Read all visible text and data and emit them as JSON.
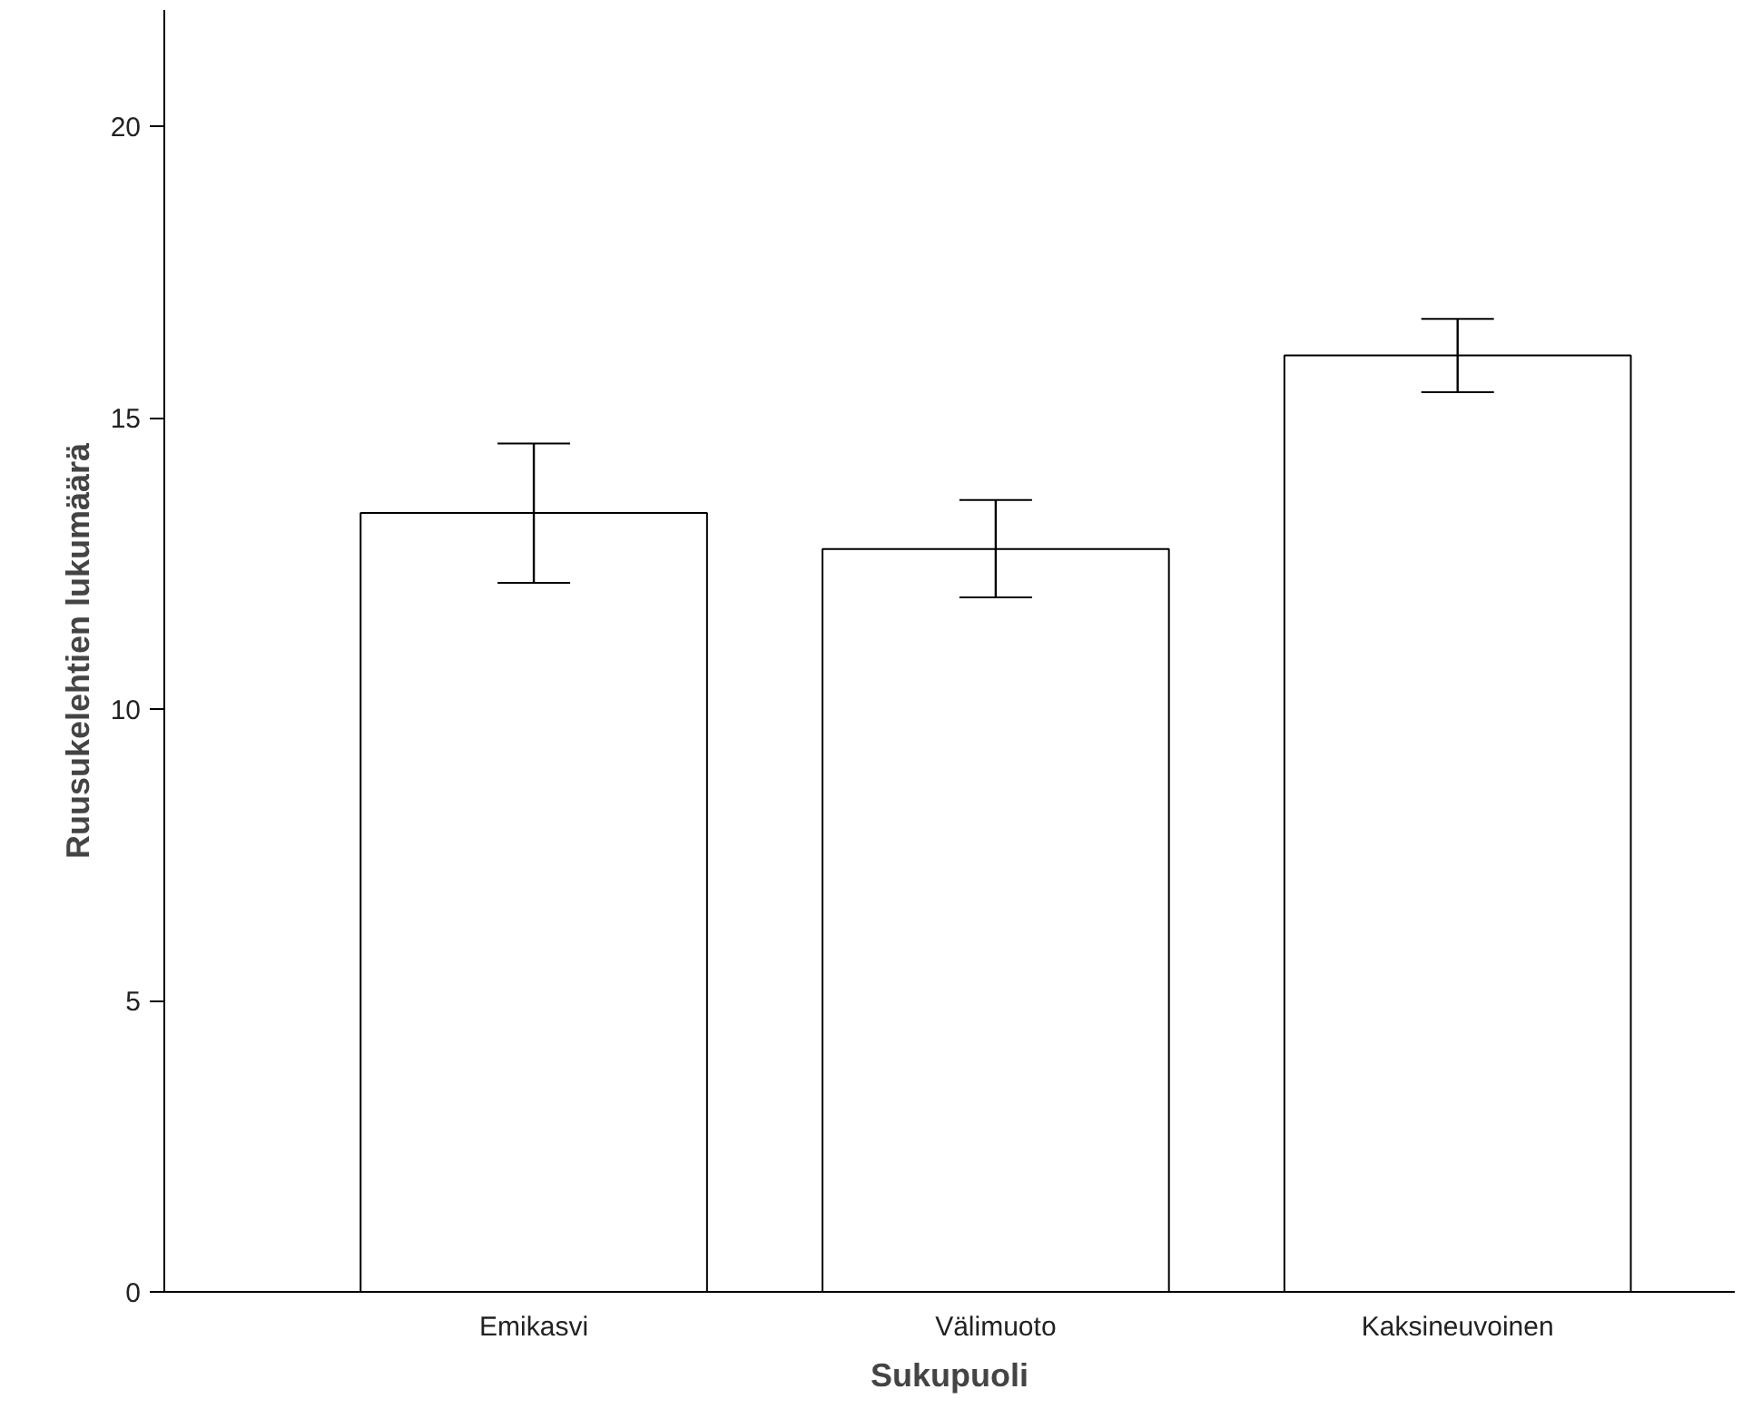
{
  "chart_data": {
    "type": "bar",
    "xlabel": "Sukupuoli",
    "ylabel": "Ruusukelehtien lukumäärä",
    "categories": [
      "Emikasvi",
      "Välimuoto",
      "Kaksineuvoinen"
    ],
    "values": [
      13.37,
      12.75,
      16.07
    ],
    "errors": [
      [
        12.17,
        14.56
      ],
      [
        11.92,
        13.59
      ],
      [
        15.44,
        16.7
      ]
    ],
    "color": "#ffffff",
    "ylim": [
      0,
      22
    ],
    "yticks": [
      0,
      5,
      10,
      15,
      20
    ],
    "grid": false
  }
}
